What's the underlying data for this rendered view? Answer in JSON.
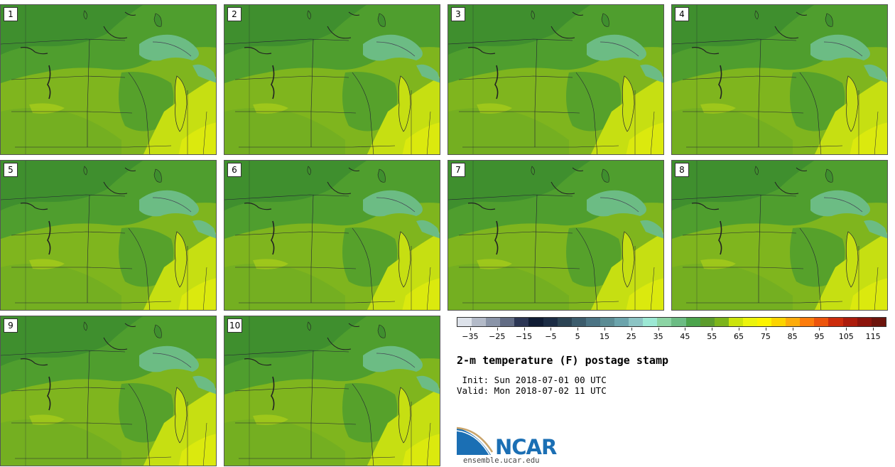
{
  "panels": [
    "1",
    "2",
    "3",
    "4",
    "5",
    "6",
    "7",
    "8",
    "9",
    "10"
  ],
  "title": "2-m temperature (F) postage stamp",
  "init": " Init: Sun 2018-07-01 00 UTC",
  "valid": "Valid: Mon 2018-07-02 11 UTC",
  "website": "ensemble.ucar.edu",
  "logo_text": "NCAR",
  "colorbar": {
    "ticks": [
      "-35",
      "-25",
      "-15",
      "-5",
      "5",
      "15",
      "25",
      "35",
      "45",
      "55",
      "65",
      "75",
      "85",
      "95",
      "105",
      "115"
    ],
    "colors": [
      "#dde2ea",
      "#b3bac8",
      "#8a94a8",
      "#626c84",
      "#2c3654",
      "#101c34",
      "#1c2c44",
      "#2c4454",
      "#3c5c6c",
      "#4c7484",
      "#5c8c94",
      "#6ca4ac",
      "#8cc4c4",
      "#9ce8d4",
      "#8cd4a4",
      "#6cbc84",
      "#4ca44c",
      "#5c9c2c",
      "#7cb41c",
      "#cce40c",
      "#ecf40c",
      "#fcf400",
      "#fcd400",
      "#fcac0c",
      "#fc7c0c",
      "#ec540c",
      "#cc2c0c",
      "#ac1c0c",
      "#8c140c",
      "#6c140c"
    ],
    "range": [
      -40,
      120
    ]
  }
}
